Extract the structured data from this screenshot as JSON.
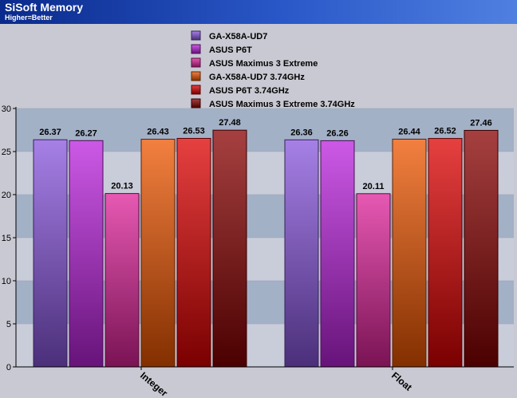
{
  "header": {
    "title": "SiSoft Memory",
    "subtitle": "Higher=Better"
  },
  "chart_data": {
    "type": "bar",
    "categories": [
      "Integer",
      "Float"
    ],
    "series": [
      {
        "name": "GA-X58A-UD7",
        "values": [
          26.37,
          26.36
        ],
        "color": "#8855dd"
      },
      {
        "name": "ASUS P6T",
        "values": [
          26.27,
          26.26
        ],
        "color": "#bb22dd"
      },
      {
        "name": "ASUS Maximus 3 Extreme",
        "values": [
          20.13,
          20.11
        ],
        "color": "#dd2299"
      },
      {
        "name": "GA-X58A-UD7 3.74GHz",
        "values": [
          26.43,
          26.44
        ],
        "color": "#ee5500"
      },
      {
        "name": "ASUS P6T 3.74GHz",
        "values": [
          26.53,
          26.52
        ],
        "color": "#dd0000"
      },
      {
        "name": "ASUS Maximus 3 Extreme 3.74GHz",
        "values": [
          27.48,
          27.46
        ],
        "color": "#880000"
      }
    ],
    "ylim": [
      0,
      30
    ],
    "yticks": [
      0,
      5,
      10,
      15,
      20,
      25,
      30
    ],
    "grid": true,
    "legend": "top-center",
    "plot_colors": {
      "band_dark": "#a3b1c7",
      "band_light": "#c9ccd9"
    }
  }
}
